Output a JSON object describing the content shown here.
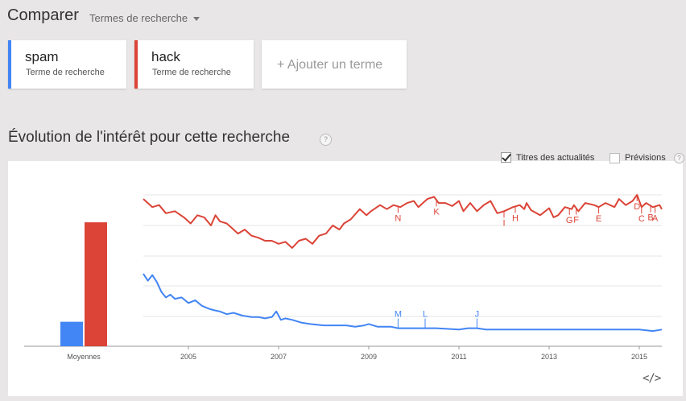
{
  "header": {
    "title": "Comparer",
    "dropdown_label": "Termes de recherche"
  },
  "terms": [
    {
      "name": "spam",
      "subtitle": "Terme de recherche",
      "color": "#4285f4"
    },
    {
      "name": "hack",
      "subtitle": "Terme de recherche",
      "color": "#db4437"
    }
  ],
  "add_term_label": "+ Ajouter un terme",
  "section": {
    "title": "Évolution de l'intérêt pour cette recherche",
    "help_icon": "?"
  },
  "options": {
    "news_label": "Titres des actualités",
    "news_checked": true,
    "forecast_label": "Prévisions",
    "forecast_checked": false,
    "help_icon": "?"
  },
  "embed_icon": "</>",
  "chart_data": {
    "type": "line",
    "averages_label": "Moyennes",
    "averages": [
      {
        "name": "spam",
        "value": 16,
        "color": "#4285f4"
      },
      {
        "name": "hack",
        "value": 81,
        "color": "#db4437"
      }
    ],
    "x_ticks": [
      "2005",
      "2007",
      "2009",
      "2011",
      "2013",
      "2015"
    ],
    "xlim": [
      2004.0,
      2015.5
    ],
    "ylim": [
      0,
      100
    ],
    "grid": true,
    "series": [
      {
        "name": "hack",
        "color": "#db4437",
        "points": [
          [
            2004.0,
            96
          ],
          [
            2004.2,
            88
          ],
          [
            2004.35,
            90
          ],
          [
            2004.5,
            82
          ],
          [
            2004.7,
            84
          ],
          [
            2004.9,
            78
          ],
          [
            2005.05,
            72
          ],
          [
            2005.2,
            80
          ],
          [
            2005.35,
            78
          ],
          [
            2005.5,
            70
          ],
          [
            2005.6,
            80
          ],
          [
            2005.7,
            74
          ],
          [
            2005.85,
            72
          ],
          [
            2005.95,
            68
          ],
          [
            2006.1,
            62
          ],
          [
            2006.25,
            66
          ],
          [
            2006.4,
            60
          ],
          [
            2006.55,
            58
          ],
          [
            2006.7,
            55
          ],
          [
            2006.85,
            55
          ],
          [
            2007.0,
            52
          ],
          [
            2007.15,
            54
          ],
          [
            2007.3,
            48
          ],
          [
            2007.45,
            55
          ],
          [
            2007.6,
            57
          ],
          [
            2007.75,
            52
          ],
          [
            2007.9,
            60
          ],
          [
            2008.05,
            62
          ],
          [
            2008.2,
            70
          ],
          [
            2008.35,
            66
          ],
          [
            2008.45,
            72
          ],
          [
            2008.6,
            76
          ],
          [
            2008.8,
            86
          ],
          [
            2008.95,
            80
          ],
          [
            2009.05,
            84
          ],
          [
            2009.25,
            90
          ],
          [
            2009.4,
            86
          ],
          [
            2009.55,
            90
          ],
          [
            2009.7,
            88
          ],
          [
            2009.85,
            92
          ],
          [
            2010.0,
            94
          ],
          [
            2010.1,
            88
          ],
          [
            2010.3,
            96
          ],
          [
            2010.45,
            98
          ],
          [
            2010.55,
            92
          ],
          [
            2010.7,
            92
          ],
          [
            2010.85,
            89
          ],
          [
            2011.0,
            94
          ],
          [
            2011.1,
            84
          ],
          [
            2011.25,
            92
          ],
          [
            2011.4,
            84
          ],
          [
            2011.55,
            90
          ],
          [
            2011.7,
            94
          ],
          [
            2011.85,
            82
          ],
          [
            2012.0,
            84
          ],
          [
            2012.2,
            88
          ],
          [
            2012.35,
            90
          ],
          [
            2012.45,
            86
          ],
          [
            2012.5,
            92
          ],
          [
            2012.6,
            85
          ],
          [
            2012.8,
            80
          ],
          [
            2013.0,
            87
          ],
          [
            2013.1,
            78
          ],
          [
            2013.2,
            80
          ],
          [
            2013.35,
            88
          ],
          [
            2013.5,
            86
          ],
          [
            2013.55,
            90
          ],
          [
            2013.65,
            84
          ],
          [
            2013.8,
            92
          ],
          [
            2014.0,
            90
          ],
          [
            2014.1,
            88
          ],
          [
            2014.25,
            92
          ],
          [
            2014.45,
            88
          ],
          [
            2014.55,
            96
          ],
          [
            2014.7,
            90
          ],
          [
            2014.85,
            94
          ],
          [
            2014.95,
            100
          ],
          [
            2015.05,
            88
          ],
          [
            2015.15,
            92
          ],
          [
            2015.3,
            88
          ],
          [
            2015.45,
            90
          ],
          [
            2015.5,
            86
          ]
        ]
      },
      {
        "name": "spam",
        "color": "#4285f4",
        "points": [
          [
            2004.0,
            45
          ],
          [
            2004.1,
            40
          ],
          [
            2004.2,
            44
          ],
          [
            2004.3,
            39
          ],
          [
            2004.4,
            32
          ],
          [
            2004.5,
            28
          ],
          [
            2004.6,
            30
          ],
          [
            2004.7,
            27
          ],
          [
            2004.85,
            28
          ],
          [
            2005.0,
            24
          ],
          [
            2005.15,
            26
          ],
          [
            2005.3,
            22
          ],
          [
            2005.45,
            20
          ],
          [
            2005.55,
            19
          ],
          [
            2005.7,
            18
          ],
          [
            2005.85,
            16
          ],
          [
            2006.0,
            17
          ],
          [
            2006.2,
            15
          ],
          [
            2006.4,
            14
          ],
          [
            2006.55,
            14
          ],
          [
            2006.7,
            13
          ],
          [
            2006.85,
            14
          ],
          [
            2006.95,
            18
          ],
          [
            2007.05,
            12
          ],
          [
            2007.15,
            13
          ],
          [
            2007.3,
            12
          ],
          [
            2007.5,
            10
          ],
          [
            2007.7,
            9
          ],
          [
            2008.0,
            8
          ],
          [
            2008.3,
            8
          ],
          [
            2008.5,
            8
          ],
          [
            2008.7,
            7
          ],
          [
            2008.9,
            8
          ],
          [
            2009.0,
            9
          ],
          [
            2009.2,
            7
          ],
          [
            2009.5,
            7
          ],
          [
            2009.65,
            6
          ],
          [
            2010.0,
            6
          ],
          [
            2010.2,
            6
          ],
          [
            2010.35,
            6
          ],
          [
            2010.5,
            6
          ],
          [
            2011.0,
            5
          ],
          [
            2011.2,
            6
          ],
          [
            2011.4,
            6
          ],
          [
            2011.6,
            5
          ],
          [
            2012.0,
            5
          ],
          [
            2012.5,
            5
          ],
          [
            2013.0,
            5
          ],
          [
            2013.5,
            5
          ],
          [
            2014.0,
            5
          ],
          [
            2014.5,
            5
          ],
          [
            2015.0,
            5
          ],
          [
            2015.3,
            4
          ],
          [
            2015.5,
            5
          ]
        ]
      }
    ],
    "annotations": [
      {
        "label": "N",
        "series": "hack",
        "x": 2009.65
      },
      {
        "label": "K",
        "series": "hack",
        "x": 2010.5
      },
      {
        "label": "I",
        "series": "hack",
        "x": 2012.0
      },
      {
        "label": "H",
        "series": "hack",
        "x": 2012.25
      },
      {
        "label": "G",
        "series": "hack",
        "x": 2013.45
      },
      {
        "label": "F",
        "series": "hack",
        "x": 2013.6
      },
      {
        "label": "E",
        "series": "hack",
        "x": 2014.1
      },
      {
        "label": "D",
        "series": "hack",
        "x": 2014.95
      },
      {
        "label": "C",
        "series": "hack",
        "x": 2015.05
      },
      {
        "label": "B",
        "series": "hack",
        "x": 2015.25
      },
      {
        "label": "A",
        "series": "hack",
        "x": 2015.35
      },
      {
        "label": "M",
        "series": "spam",
        "x": 2009.65
      },
      {
        "label": "L",
        "series": "spam",
        "x": 2010.25
      },
      {
        "label": "J",
        "series": "spam",
        "x": 2011.4
      }
    ]
  }
}
